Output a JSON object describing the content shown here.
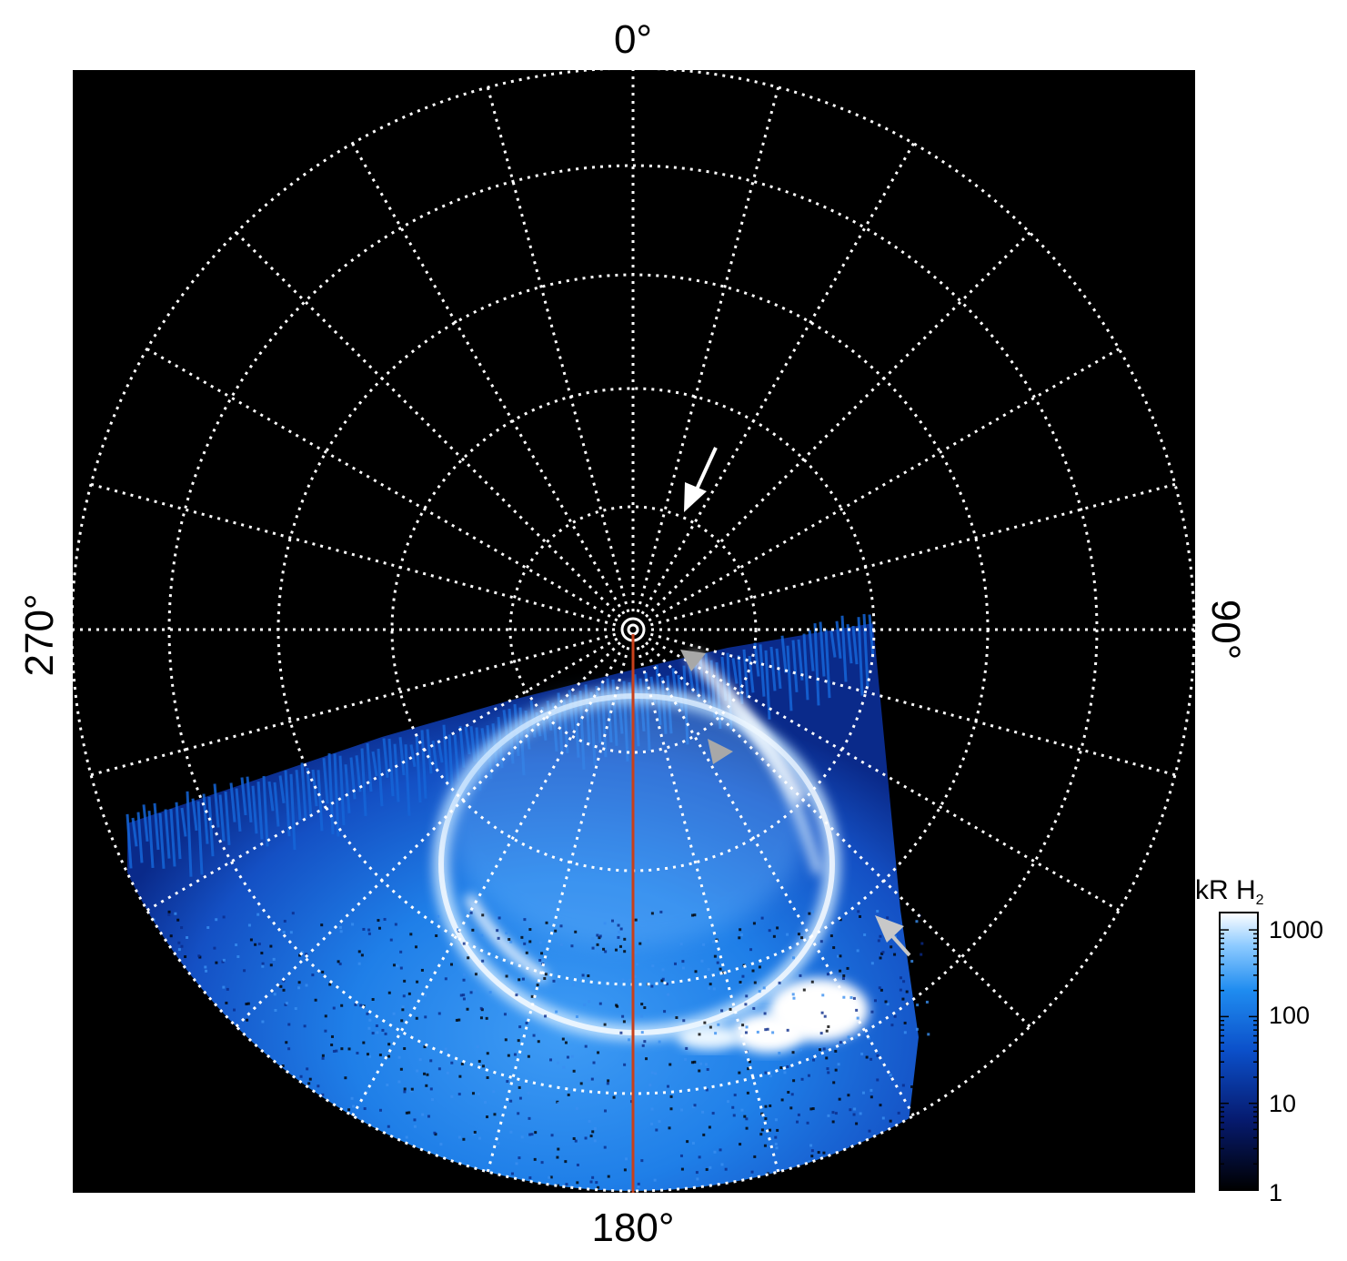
{
  "axis_labels": {
    "top": "0°",
    "right": "90°",
    "bottom": "180°",
    "left": "270°"
  },
  "colorbar": {
    "unit_main": "kR H",
    "unit_sub": "2",
    "ticks": [
      "1000",
      "100",
      "10",
      "1"
    ]
  },
  "colors": {
    "background": "#000000",
    "grid": "#ffffff",
    "meridian_line": "#c8401a",
    "aurora_bright": "#eaf6ff",
    "aurora_mid": "#1f7fe8",
    "aurora_dark": "#0a2a8a",
    "arrow_white": "#ffffff",
    "arrow_gray": "#a8a8a8"
  }
}
